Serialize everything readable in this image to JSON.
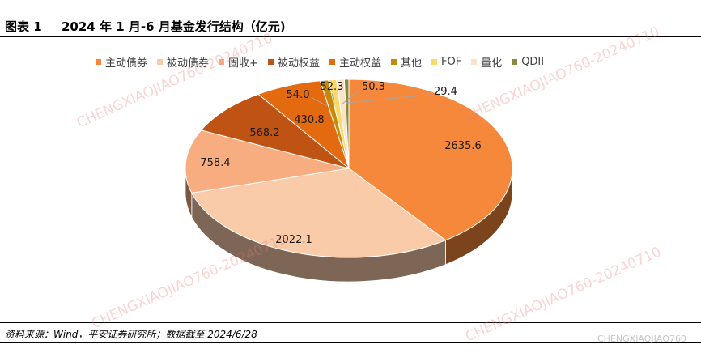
{
  "header": {
    "fig_num": "图表 1",
    "title": "2024 年 1 月-6 月基金发行结构（亿元)"
  },
  "footer": {
    "source": "资料来源：Wind，平安证券研究所；数据截至 2024/6/28"
  },
  "watermark": {
    "text": "CHENGXIAOJIAO760-20240710",
    "corner": "CHENGXIAOJIAO760"
  },
  "chart_data": {
    "type": "pie",
    "title": "2024 年 1 月-6 月基金发行结构（亿元)",
    "legend_position": "top",
    "series": [
      {
        "name": "主动债券",
        "value": 2635.6,
        "label": "2635.6",
        "color": "#F5883A"
      },
      {
        "name": "被动债券",
        "value": 2022.1,
        "label": "2022.1",
        "color": "#F9CBA9"
      },
      {
        "name": "固收+",
        "value": 758.4,
        "label": "758.4",
        "color": "#F8AD80"
      },
      {
        "name": "被动权益",
        "value": 568.2,
        "label": "568.2",
        "color": "#BF5313"
      },
      {
        "name": "主动权益",
        "value": 430.8,
        "label": "430.8",
        "color": "#E36A0E"
      },
      {
        "name": "其他",
        "value": 54.0,
        "label": "54.0",
        "color": "#C48A0C"
      },
      {
        "name": "FOF",
        "value": 52.3,
        "label": "52.3",
        "color": "#F9D96B"
      },
      {
        "name": "量化",
        "value": 50.3,
        "label": "50.3",
        "color": "#FBE3C8"
      },
      {
        "name": "QDII",
        "value": 29.4,
        "label": "29.4",
        "color": "#8A8A3A"
      }
    ]
  }
}
